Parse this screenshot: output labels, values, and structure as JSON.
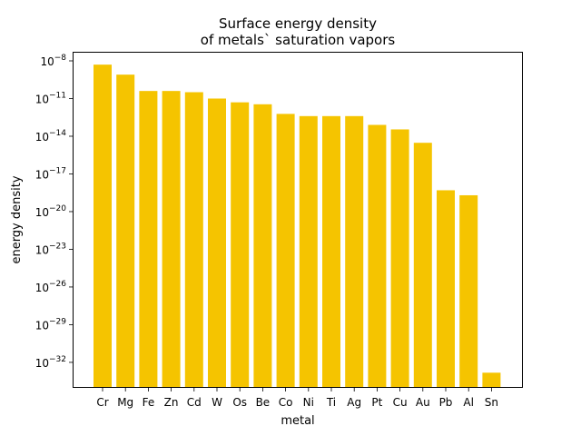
{
  "chart_data": {
    "type": "bar",
    "title_lines": [
      "Surface energy density",
      "of metals` saturation vapors"
    ],
    "xlabel": "metal",
    "ylabel": "energy density",
    "yscale": "log",
    "ylim": [
      1e-34,
      1e-08
    ],
    "yticks": [
      {
        "value": 1e-08,
        "base": "10",
        "exp": "−8"
      },
      {
        "value": 1e-11,
        "base": "10",
        "exp": "−11"
      },
      {
        "value": 1e-14,
        "base": "10",
        "exp": "−14"
      },
      {
        "value": 1e-17,
        "base": "10",
        "exp": "−17"
      },
      {
        "value": 1e-20,
        "base": "10",
        "exp": "−20"
      },
      {
        "value": 1e-23,
        "base": "10",
        "exp": "−23"
      },
      {
        "value": 1e-26,
        "base": "10",
        "exp": "−26"
      },
      {
        "value": 1e-29,
        "base": "10",
        "exp": "−29"
      },
      {
        "value": 1e-32,
        "base": "10",
        "exp": "−32"
      }
    ],
    "grid": false,
    "bar_color": "#f5c400",
    "categories": [
      "Cr",
      "Mg",
      "Fe",
      "Zn",
      "Cd",
      "W",
      "Os",
      "Be",
      "Co",
      "Ni",
      "Ti",
      "Ag",
      "Pt",
      "Cu",
      "Au",
      "Pb",
      "Al",
      "Sn"
    ],
    "values": [
      5e-09,
      8e-10,
      4e-11,
      4e-11,
      3.2e-11,
      1e-11,
      5e-12,
      3.5e-12,
      6e-13,
      4e-13,
      4e-13,
      4e-13,
      8e-14,
      3.5e-14,
      3e-15,
      5e-19,
      2e-19,
      1.5e-33
    ]
  }
}
